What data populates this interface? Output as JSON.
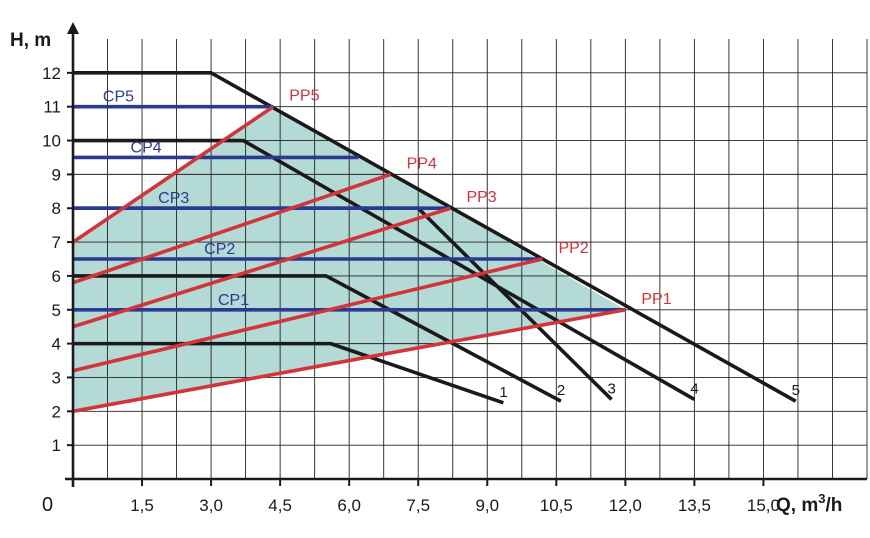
{
  "chart_data": {
    "type": "line",
    "title": "",
    "xlabel": "Q, m",
    "xlabel_sup": "3",
    "xlabel_tail": "/h",
    "ylabel": "H, m",
    "origin_label": "0",
    "xlim": [
      0,
      17.25
    ],
    "ylim": [
      0,
      13
    ],
    "x_ticks": [
      1.5,
      3.0,
      4.5,
      6.0,
      7.5,
      9.0,
      10.5,
      12.0,
      13.5,
      15.0
    ],
    "x_tick_labels": [
      "1,5",
      "3,0",
      "4,5",
      "6,0",
      "7,5",
      "9,0",
      "10,5",
      "12,0",
      "13,5",
      "15,0"
    ],
    "y_ticks": [
      1,
      2,
      3,
      4,
      5,
      6,
      7,
      8,
      9,
      10,
      11,
      12
    ],
    "y_tick_labels": [
      "1",
      "2",
      "3",
      "4",
      "5",
      "6",
      "7",
      "8",
      "9",
      "10",
      "11",
      "12"
    ],
    "grid": true,
    "x_grid_step": 0.75,
    "colors": {
      "speed_curve": "#1a1a1a",
      "constant_pressure": "#2b3990",
      "proportional_pressure": "#d2343a",
      "region_fill": "#a7d4cf",
      "grid": "#222222"
    },
    "speed_curves": [
      {
        "label": "1",
        "points": [
          [
            0,
            4
          ],
          [
            5.6,
            4
          ],
          [
            9.35,
            2.25
          ]
        ]
      },
      {
        "label": "2",
        "points": [
          [
            0,
            6
          ],
          [
            5.5,
            6
          ],
          [
            10.6,
            2.3
          ]
        ]
      },
      {
        "label": "3",
        "points": [
          [
            0,
            8
          ],
          [
            7.5,
            8
          ],
          [
            11.7,
            2.35
          ]
        ]
      },
      {
        "label": "4",
        "points": [
          [
            0,
            10
          ],
          [
            3.7,
            10
          ],
          [
            13.5,
            2.35
          ]
        ]
      },
      {
        "label": "5",
        "points": [
          [
            0,
            12
          ],
          [
            3.0,
            12
          ],
          [
            15.7,
            2.3
          ]
        ]
      }
    ],
    "constant_pressure": [
      {
        "label": "CP1",
        "y": 5,
        "x_end": 12.0
      },
      {
        "label": "CP2",
        "y": 6.5,
        "x_end": 10.2
      },
      {
        "label": "CP3",
        "y": 8,
        "x_end": 8.2
      },
      {
        "label": "CP4",
        "y": 9.5,
        "x_end": 6.2
      },
      {
        "label": "CP5",
        "y": 11,
        "x_end": 4.35
      }
    ],
    "proportional_pressure": [
      {
        "label": "PP1",
        "points": [
          [
            0,
            2
          ],
          [
            12.0,
            5
          ]
        ]
      },
      {
        "label": "PP2",
        "points": [
          [
            0,
            3.2
          ],
          [
            10.2,
            6.5
          ]
        ]
      },
      {
        "label": "PP3",
        "points": [
          [
            0,
            4.5
          ],
          [
            8.2,
            8
          ]
        ]
      },
      {
        "label": "PP4",
        "points": [
          [
            0,
            5.8
          ],
          [
            6.9,
            9
          ]
        ]
      },
      {
        "label": "PP5",
        "points": [
          [
            0,
            7
          ],
          [
            4.35,
            11
          ]
        ]
      }
    ],
    "shaded_region": [
      [
        0,
        2
      ],
      [
        12.0,
        5
      ],
      [
        4.35,
        11
      ],
      [
        0,
        7
      ]
    ]
  }
}
